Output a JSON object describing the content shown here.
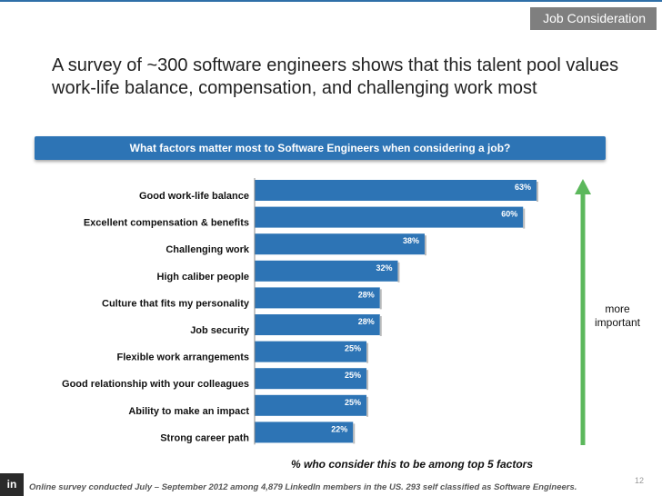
{
  "header": {
    "tag": "Job Consideration"
  },
  "headline": "A survey of ~300 software engineers shows that this talent pool values work-life balance, compensation, and challenging work most",
  "banner": "What factors matter most to Software Engineers when considering a job?",
  "annotation": {
    "arrow_label": "more important",
    "arrow_icon": "arrow-up-icon",
    "arrow_color": "#5cb85c"
  },
  "footnote": "Online survey conducted July – September 2012 among 4,879 LinkedIn members in the US.  293 self classified as Software Engineers.",
  "page_number": "12",
  "logo": "in",
  "colors": {
    "bar": "#2d74b5",
    "accent_rule": "#2f6fa8"
  },
  "chart_data": {
    "type": "bar",
    "orientation": "horizontal",
    "title": "What factors matter most to Software Engineers when considering a job?",
    "xlabel": "% who consider this to be among top 5 factors",
    "ylabel": "",
    "xlim": [
      0,
      63
    ],
    "grid": false,
    "legend": "none",
    "categories": [
      "Good work-life balance",
      "Excellent compensation & benefits",
      "Challenging work",
      "High caliber people",
      "Culture that fits my personality",
      "Job security",
      "Flexible work arrangements",
      "Good relationship with your colleagues",
      "Ability to make an impact",
      "Strong career path"
    ],
    "values": [
      63,
      60,
      38,
      32,
      28,
      28,
      25,
      25,
      25,
      22
    ],
    "value_labels": [
      "63%",
      "60%",
      "38%",
      "32%",
      "28%",
      "28%",
      "25%",
      "25%",
      "25%",
      "22%"
    ]
  }
}
